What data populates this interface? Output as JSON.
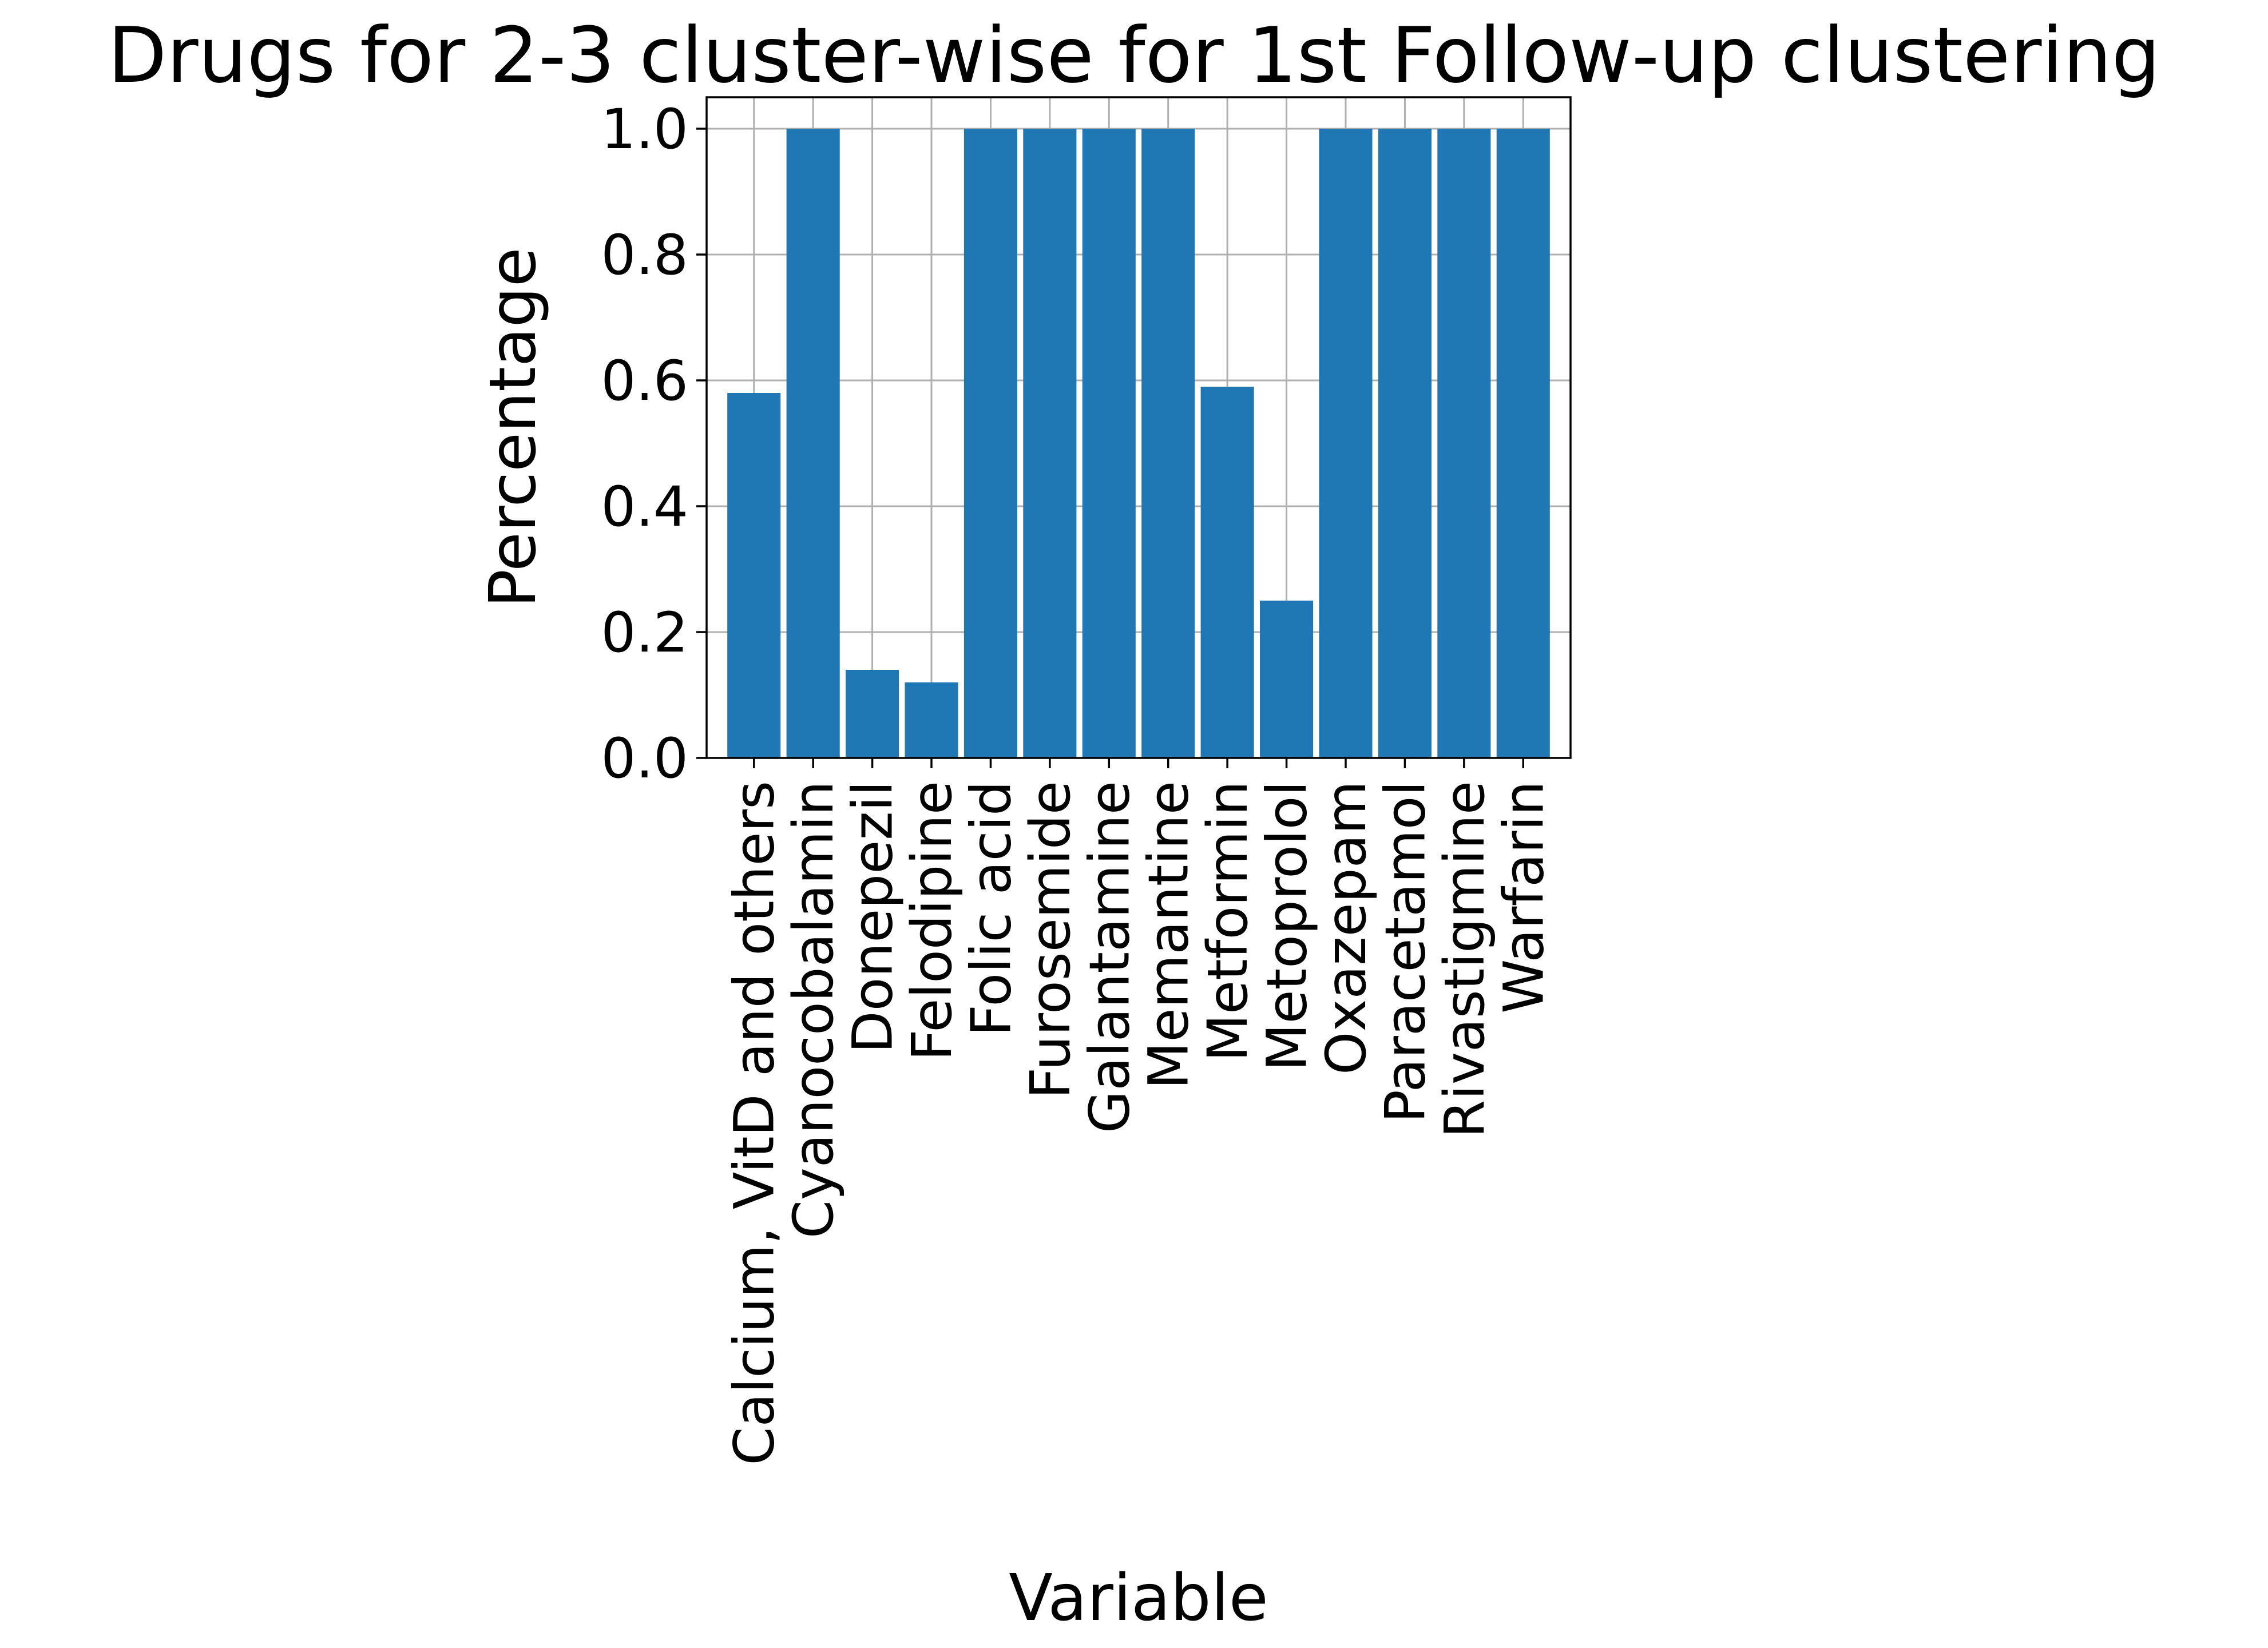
{
  "chart_data": {
    "type": "bar",
    "title": "Drugs for 2-3 cluster-wise for 1st Follow-up clustering",
    "xlabel": "Variable",
    "ylabel": "Percentage",
    "categories": [
      "Calcium, VitD and others",
      "Cyanocobalamin",
      "Donepezil",
      "Felodipine",
      "Folic acid",
      "Furosemide",
      "Galantamine",
      "Memantine",
      "Metformin",
      "Metoprolol",
      "Oxazepam",
      "Paracetamol",
      "Rivastigmine",
      "Warfarin"
    ],
    "values": [
      0.58,
      1.0,
      0.14,
      0.12,
      1.0,
      1.0,
      1.0,
      1.0,
      0.59,
      0.25,
      1.0,
      1.0,
      1.0,
      1.0
    ],
    "ylim": [
      0,
      1.05
    ],
    "yticks": [
      "0.0",
      "0.2",
      "0.4",
      "0.6",
      "0.8",
      "1.0"
    ],
    "grid": true,
    "bar_color": "#1f77b4"
  }
}
